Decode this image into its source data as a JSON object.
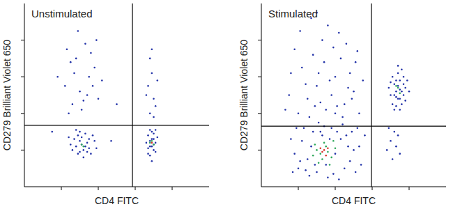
{
  "chart_data": [
    {
      "type": "scatter",
      "title": "Unstimulated",
      "x_label": "CD4 FITC",
      "y_label": "CD279 Brilliant Violet 650",
      "xlim": [
        0,
        100
      ],
      "ylim": [
        0,
        100
      ],
      "xticks": [
        20,
        40,
        60,
        80
      ],
      "yticks": [
        20,
        40,
        60,
        80
      ],
      "tick_labels": false,
      "gate": {
        "x": 58.5,
        "y": 33.5
      },
      "series": [
        {
          "color": "#2232a8",
          "marker": "dot",
          "x": [
            28,
            30,
            32,
            34,
            31,
            29,
            35,
            33,
            27,
            36,
            30,
            25,
            38,
            32,
            29,
            34,
            31,
            26,
            37,
            33,
            28,
            35,
            24,
            39,
            30,
            26,
            30,
            35,
            28,
            40,
            33,
            22,
            38,
            31,
            27,
            36,
            24,
            42,
            29,
            34,
            25,
            39,
            32,
            37,
            23,
            15,
            47,
            18,
            50,
            68,
            69,
            70,
            67,
            71,
            68,
            69,
            70,
            67,
            72,
            68,
            69,
            70,
            66,
            71,
            69,
            68,
            70,
            67,
            71,
            68,
            70,
            67,
            69,
            71,
            68,
            70,
            66,
            72,
            69
          ],
          "values": [
            22,
            25,
            20,
            24,
            27,
            18,
            21,
            29,
            26,
            18,
            30,
            23,
            25,
            16,
            28,
            19,
            23,
            20,
            28,
            22,
            31,
            26,
            27,
            21,
            19,
            45,
            52,
            60,
            70,
            48,
            78,
            55,
            65,
            42,
            62,
            73,
            40,
            58,
            85,
            50,
            68,
            80,
            47,
            55,
            75,
            30,
            25,
            60,
            45,
            22,
            26,
            20,
            28,
            24,
            17,
            30,
            23,
            21,
            27,
            25,
            14,
            29,
            24,
            19,
            22,
            31,
            26,
            18,
            31,
            40,
            48,
            55,
            62,
            44,
            70,
            38,
            50,
            58,
            75
          ]
        },
        {
          "color": "#2ea85a",
          "marker": "dot",
          "x": [
            31,
            69,
            70,
            68,
            32
          ],
          "values": [
            23,
            25,
            23,
            24,
            22
          ]
        },
        {
          "color": "#d8342a",
          "marker": "dot",
          "x": [
            69
          ],
          "values": [
            24
          ]
        }
      ]
    },
    {
      "type": "scatter",
      "title": "Stimulated",
      "x_label": "CD4 FITC",
      "y_label": "CD279 Brilliant Violet 650",
      "xlim": [
        0,
        100
      ],
      "ylim": [
        0,
        100
      ],
      "xticks": [
        20,
        40,
        60,
        80
      ],
      "yticks": [
        20,
        40,
        60,
        80
      ],
      "tick_labels": false,
      "gate": {
        "x": 59.6,
        "y": 33
      },
      "series": [
        {
          "color": "#2232a8",
          "marker": "dot",
          "x": [
            20,
            25,
            30,
            35,
            40,
            45,
            50,
            22,
            28,
            33,
            38,
            43,
            48,
            53,
            18,
            26,
            31,
            36,
            41,
            46,
            51,
            23,
            27,
            34,
            39,
            44,
            49,
            54,
            16,
            21,
            56,
            19,
            24,
            42,
            47,
            52,
            29,
            37,
            32,
            17,
            20,
            25,
            30,
            35,
            40,
            45,
            50,
            15,
            22,
            28,
            33,
            38,
            43,
            48,
            53,
            18,
            26,
            31,
            36,
            41,
            46,
            51,
            13,
            24,
            29,
            34,
            39,
            44,
            49,
            55,
            21,
            27,
            32,
            37,
            42,
            47,
            52,
            16,
            30,
            40,
            72,
            74,
            76,
            73,
            75,
            77,
            71,
            78,
            74,
            72,
            76,
            73,
            75,
            70,
            77,
            74,
            79,
            71,
            73,
            76,
            75,
            72,
            78,
            70,
            74,
            77,
            73,
            80,
            69,
            75,
            70,
            72,
            68,
            74,
            71,
            73,
            69,
            75
          ],
          "values": [
            10,
            15,
            8,
            12,
            18,
            10,
            20,
            25,
            30,
            28,
            32,
            26,
            14,
            22,
            18,
            6,
            35,
            5,
            30,
            28,
            8,
            32,
            22,
            33,
            7,
            34,
            30,
            12,
            26,
            14,
            28,
            32,
            9,
            4,
            22,
            32,
            12,
            26,
            30,
            8,
            40,
            48,
            55,
            42,
            60,
            45,
            52,
            50,
            65,
            72,
            80,
            50,
            70,
            62,
            40,
            75,
            38,
            62,
            88,
            44,
            78,
            68,
            42,
            56,
            44,
            68,
            76,
            38,
            48,
            58,
            85,
            92,
            46,
            58,
            84,
            54,
            74,
            62,
            95,
            40,
            50,
            55,
            52,
            58,
            48,
            60,
            45,
            54,
            62,
            56,
            45,
            52,
            58,
            50,
            50,
            48,
            58,
            60,
            44,
            64,
            53,
            42,
            47,
            57,
            66,
            56,
            49,
            52,
            54,
            42,
            25,
            30,
            20,
            28,
            15,
            22,
            32,
            18
          ]
        },
        {
          "color": "#2ea85a",
          "marker": "dot",
          "x": [
            32,
            35,
            30,
            38,
            33,
            36,
            28,
            40,
            34,
            31,
            37,
            29,
            39,
            74,
            75,
            73
          ],
          "values": [
            18,
            22,
            20,
            16,
            15,
            19,
            17,
            21,
            24,
            13,
            12,
            23,
            25,
            54,
            51,
            55
          ]
        },
        {
          "color": "#d8342a",
          "marker": "dot",
          "x": [
            33,
            35,
            34,
            36,
            32
          ],
          "values": [
            19,
            17,
            20,
            21,
            21
          ]
        }
      ]
    }
  ]
}
